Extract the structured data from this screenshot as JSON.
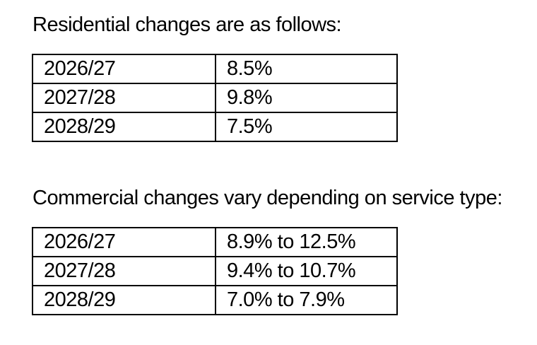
{
  "page": {
    "background_color": "#ffffff",
    "text_color": "#000000",
    "table_border_color": "#000000"
  },
  "sections": [
    {
      "heading": "Residential changes are as follows:",
      "table": {
        "rows": [
          {
            "year": "2026/27",
            "change": "8.5%"
          },
          {
            "year": "2027/28",
            "change": "9.8%"
          },
          {
            "year": "2028/29",
            "change": "7.5%"
          }
        ]
      }
    },
    {
      "heading": "Commercial changes vary depending on service type:",
      "table": {
        "rows": [
          {
            "year": "2026/27",
            "change": "8.9% to 12.5%"
          },
          {
            "year": "2027/28",
            "change": "9.4% to 10.7%"
          },
          {
            "year": "2028/29",
            "change": "7.0% to 7.9%"
          }
        ]
      }
    }
  ]
}
